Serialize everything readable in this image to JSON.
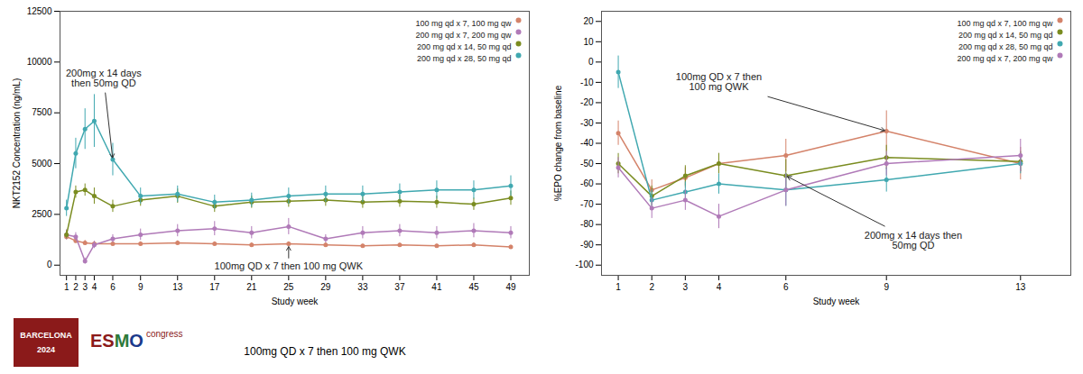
{
  "chart_data": [
    {
      "type": "line",
      "marker": "circle",
      "grid": false,
      "legend": "upper right",
      "xlabel": "Study week",
      "ylabel": "NKT2152 Concentration (ng/mL)",
      "x": [
        1,
        2,
        3,
        4,
        6,
        9,
        13,
        17,
        21,
        25,
        29,
        33,
        37,
        41,
        45,
        49
      ],
      "xlim": [
        0.3,
        51
      ],
      "xticks": [
        1,
        2,
        3,
        4,
        6,
        9,
        13,
        17,
        21,
        25,
        29,
        33,
        37,
        41,
        45,
        49
      ],
      "ylim": [
        -500,
        12500
      ],
      "yticks": [
        0,
        2500,
        5000,
        7500,
        10000,
        12500
      ],
      "series": [
        {
          "name": "100 mg qd x 7, 100 mg qw",
          "color": "#d4836a",
          "values": [
            1400,
            1200,
            1100,
            1050,
            1050,
            1050,
            1100,
            1050,
            1000,
            1050,
            1000,
            950,
            1000,
            950,
            1000,
            900
          ],
          "errors": [
            150,
            120,
            120,
            100,
            100,
            100,
            100,
            100,
            100,
            100,
            100,
            80,
            80,
            80,
            100,
            80
          ]
        },
        {
          "name": "200 mg qd x 7, 200 mg qw",
          "color": "#b07ab8",
          "values": [
            1500,
            1400,
            200,
            1000,
            1300,
            1500,
            1700,
            1800,
            1600,
            1900,
            1300,
            1600,
            1700,
            1600,
            1700,
            1600
          ],
          "errors": [
            250,
            200,
            150,
            180,
            200,
            280,
            300,
            350,
            300,
            400,
            200,
            300,
            300,
            300,
            350,
            300
          ]
        },
        {
          "name": "200 mg qd x 14, 50 mg qd",
          "color": "#7a8c20",
          "values": [
            1500,
            3600,
            3700,
            3400,
            2900,
            3200,
            3400,
            2900,
            3100,
            3150,
            3200,
            3100,
            3150,
            3100,
            3000,
            3300
          ],
          "errors": [
            200,
            300,
            300,
            400,
            300,
            300,
            350,
            300,
            300,
            300,
            300,
            300,
            300,
            300,
            300,
            350
          ]
        },
        {
          "name": "200 mg qd x 28, 50 mg qd",
          "color": "#40a8b0",
          "values": [
            2800,
            5500,
            6700,
            7100,
            5200,
            3400,
            3500,
            3100,
            3200,
            3400,
            3500,
            3500,
            3600,
            3700,
            3700,
            3900
          ],
          "errors": [
            400,
            750,
            1000,
            1300,
            800,
            400,
            400,
            350,
            350,
            400,
            400,
            400,
            400,
            450,
            450,
            500
          ]
        }
      ],
      "annotations": [
        {
          "text": "200mg x 14 days\nthen 50mg QD",
          "x": 6,
          "y": 5200,
          "text_x": 4.5,
          "text_y": 9200
        },
        {
          "text": "100mg QD x 7 then 100 mg QWK",
          "x": 25,
          "y": 1000,
          "text_x": 25,
          "text_y": -350
        }
      ]
    },
    {
      "type": "line",
      "marker": "circle",
      "grid": false,
      "legend": "upper right",
      "xlabel": "Study week",
      "ylabel": "%EPO change from baseline",
      "x": [
        1,
        2,
        3,
        4,
        6,
        9,
        13
      ],
      "xlim": [
        0.5,
        14.5
      ],
      "xticks": [
        1,
        2,
        3,
        4,
        6,
        9,
        13
      ],
      "ylim": [
        -105,
        25
      ],
      "yticks": [
        -100,
        -90,
        -80,
        -70,
        -60,
        -50,
        -40,
        -30,
        -20,
        -10,
        0,
        10,
        20
      ],
      "series": [
        {
          "name": "100 mg qd x 7, 100 mg qw",
          "color": "#d4836a",
          "values": [
            -35,
            -63,
            -57,
            -50,
            -46,
            -34,
            -50
          ],
          "errors": [
            6,
            5,
            5,
            5,
            8,
            10,
            8
          ]
        },
        {
          "name": "200 mg qd x 14, 50 mg qd",
          "color": "#7a8c20",
          "values": [
            -50,
            -66,
            -56,
            -50,
            -56,
            -47,
            -49
          ],
          "errors": [
            5,
            5,
            5,
            5,
            8,
            6,
            5
          ]
        },
        {
          "name": "200 mg qd x 28, 50 mg qd",
          "color": "#40a8b0",
          "values": [
            -5,
            -68,
            -64,
            -60,
            -63,
            -58,
            -50
          ],
          "errors": [
            8,
            5,
            5,
            5,
            8,
            6,
            5
          ]
        },
        {
          "name": "200 mg qd x 7, 200 mg qw",
          "color": "#b07ab8",
          "values": [
            -52,
            -72,
            -68,
            -76,
            -63,
            -50,
            -46
          ],
          "errors": [
            5,
            5,
            5,
            6,
            8,
            6,
            8
          ]
        }
      ],
      "annotations": [
        {
          "text": "100mg QD x 7 then\n100 mg QWK",
          "x": 9,
          "y": -34,
          "text_x": 4.0,
          "text_y": -10
        },
        {
          "text": "200mg x 14 days then\n50mg QD",
          "x": 6,
          "y": -56,
          "text_x": 9.8,
          "text_y": -88
        }
      ]
    }
  ],
  "logo": {
    "badge": {
      "text": "BARCELONA\n2024",
      "color": "white",
      "background": "#8b1a1a"
    },
    "letters": [
      {
        "text": "ES",
        "color": "#8b1a1a"
      },
      {
        "text": "M",
        "color": "#2d7a3a"
      },
      {
        "text": "O",
        "color": "#1a3a8b"
      }
    ],
    "word": {
      "text": "congress",
      "color": "#8b1a1a"
    }
  },
  "caption": {
    "text": "100mg QD x 7 then 100 mg QWK",
    "color": "black"
  }
}
